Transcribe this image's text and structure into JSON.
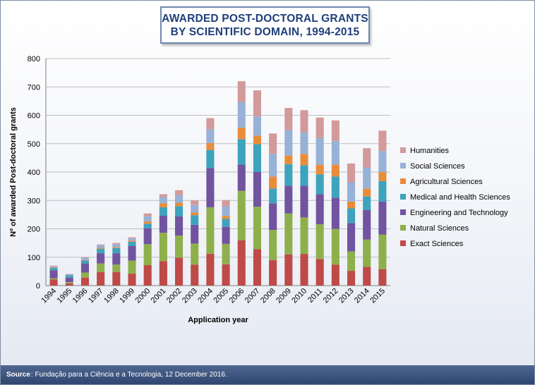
{
  "title_lines": [
    "AWARDED POST-DOCTORAL GRANTS",
    "BY SCIENTIFIC DOMAIN, 1994-2015"
  ],
  "footer": {
    "label": "Source",
    "text": ": Fundação para a Ciência e a Tecnologia, 12 December 2016."
  },
  "chart_data": {
    "type": "bar",
    "stacked": true,
    "xlabel": "Application year",
    "ylabel": "Nº of awarded Post-doctoral grants",
    "ylim": [
      0,
      800
    ],
    "yticks": [
      0,
      100,
      200,
      300,
      400,
      500,
      600,
      700,
      800
    ],
    "grid": true,
    "legend_position": "right",
    "categories": [
      "1994",
      "1995",
      "1996",
      "1997",
      "1998",
      "1999",
      "2000",
      "2001",
      "2002",
      "2003",
      "2004",
      "2005",
      "2006",
      "2007",
      "2008",
      "2009",
      "2010",
      "2011",
      "2012",
      "2013",
      "2014",
      "2015"
    ],
    "series": [
      {
        "name": "Exact Sciences",
        "color": "#be4b48",
        "values": [
          22,
          8,
          28,
          48,
          48,
          42,
          72,
          86,
          98,
          74,
          112,
          75,
          160,
          128,
          90,
          110,
          112,
          94,
          74,
          52,
          66,
          58
        ]
      },
      {
        "name": "Natural Sciences",
        "color": "#8eb04c",
        "values": [
          4,
          4,
          18,
          30,
          26,
          46,
          74,
          100,
          78,
          74,
          164,
          72,
          174,
          150,
          106,
          144,
          128,
          122,
          126,
          68,
          96,
          122
        ]
      },
      {
        "name": "Engineering and Technology",
        "color": "#7153a0",
        "values": [
          28,
          16,
          32,
          36,
          40,
          52,
          56,
          60,
          68,
          66,
          138,
          60,
          92,
          122,
          94,
          98,
          112,
          106,
          110,
          100,
          104,
          116
        ]
      },
      {
        "name": "Medical and Health Sciences",
        "color": "#3ea3bc",
        "values": [
          8,
          8,
          10,
          16,
          18,
          14,
          16,
          30,
          36,
          34,
          64,
          28,
          90,
          98,
          52,
          76,
          72,
          70,
          74,
          52,
          48,
          72
        ]
      },
      {
        "name": "Agricultural Sciences",
        "color": "#e98c3a",
        "values": [
          2,
          1,
          2,
          3,
          3,
          4,
          8,
          14,
          12,
          10,
          24,
          10,
          40,
          30,
          42,
          30,
          40,
          34,
          42,
          24,
          28,
          32
        ]
      },
      {
        "name": "Social Sciences",
        "color": "#97b2d6",
        "values": [
          4,
          3,
          8,
          10,
          10,
          8,
          18,
          22,
          26,
          26,
          48,
          34,
          90,
          68,
          80,
          90,
          76,
          94,
          84,
          68,
          74,
          74
        ]
      },
      {
        "name": "Humanities",
        "color": "#d29a9a",
        "values": [
          2,
          1,
          2,
          2,
          5,
          4,
          10,
          10,
          18,
          16,
          40,
          22,
          74,
          92,
          72,
          78,
          78,
          72,
          72,
          66,
          68,
          72
        ]
      }
    ]
  }
}
